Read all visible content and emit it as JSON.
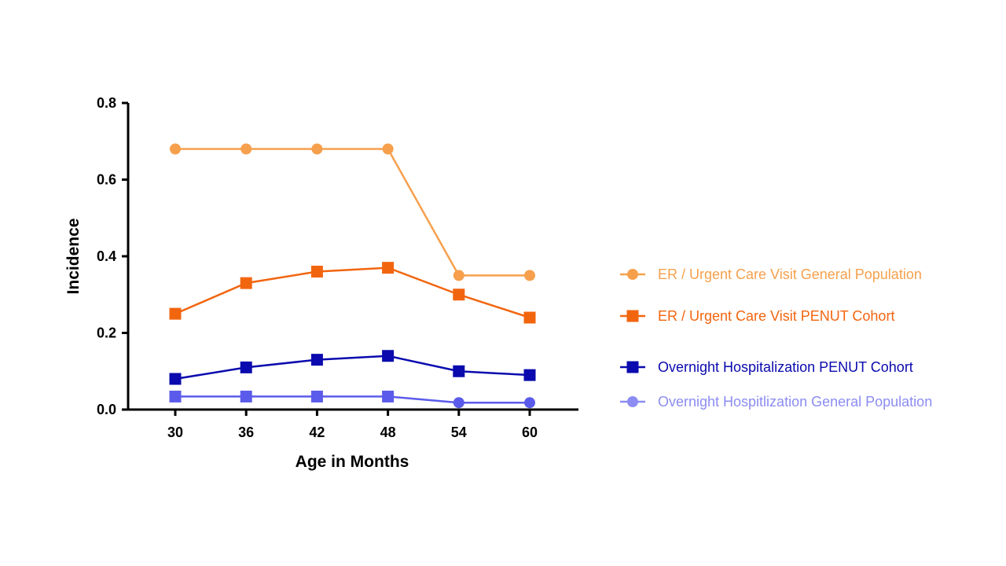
{
  "chart_data": {
    "type": "line",
    "title": "",
    "xlabel": "Age in Months",
    "ylabel": "Incidence",
    "x": [
      30,
      36,
      42,
      48,
      54,
      60
    ],
    "x_tick_labels": [
      "30",
      "36",
      "42",
      "48",
      "54",
      "60"
    ],
    "ylim": [
      0,
      0.8
    ],
    "y_ticks": [
      0.0,
      0.2,
      0.4,
      0.6,
      0.8
    ],
    "y_tick_labels": [
      "0.0",
      "0.2",
      "0.4",
      "0.6",
      "0.8"
    ],
    "grid": false,
    "legend_position": "right",
    "series": [
      {
        "name": "ER / Urgent Care Visit General Population",
        "marker": "circle",
        "color": "#F6A04D",
        "values": [
          0.68,
          0.68,
          0.68,
          0.68,
          0.35,
          0.35
        ]
      },
      {
        "name": "ER / Urgent Care Visit PENUT Cohort",
        "marker": "square",
        "color": "#F2650F",
        "values": [
          0.25,
          0.33,
          0.36,
          0.37,
          0.3,
          0.24
        ]
      },
      {
        "name": "Overnight Hospitalization PENUT Cohort",
        "marker": "square",
        "color": "#0A0AAE",
        "values": [
          0.08,
          0.11,
          0.13,
          0.14,
          0.1,
          0.09
        ]
      },
      {
        "name": "Overnight Hospitlization General Population",
        "marker": "circle",
        "color": "#5B5BEB",
        "legend_color": "#8C8CF2",
        "point_markers": [
          "square",
          "square",
          "square",
          "square",
          "circle",
          "circle"
        ],
        "values": [
          0.034,
          0.034,
          0.034,
          0.034,
          0.018,
          0.018
        ]
      }
    ]
  }
}
